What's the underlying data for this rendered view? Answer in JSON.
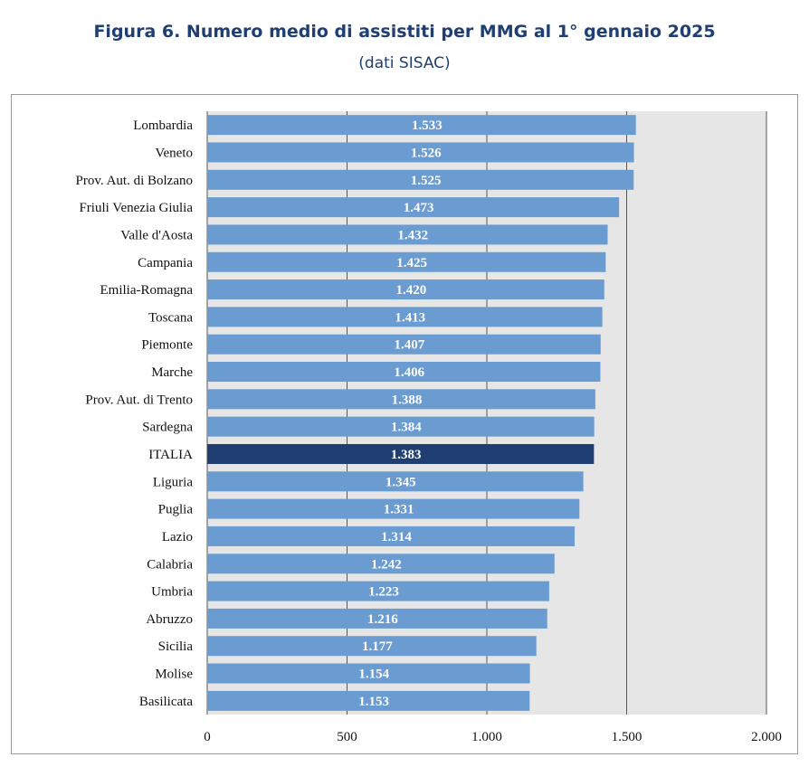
{
  "header": {
    "title": "Figura 6. Numero medio di assistiti per MMG al 1° gennaio 2025",
    "subtitle": "(dati SISAC)"
  },
  "colors": {
    "bar": "#6a9bd1",
    "highlight": "#1f3f73",
    "plot_bg": "#e6e6e6",
    "grid": "#555555",
    "title": "#1f3f73"
  },
  "chart_data": {
    "type": "bar",
    "orientation": "horizontal",
    "title": "Figura 6. Numero medio di assistiti per MMG al 1° gennaio 2025",
    "subtitle": "(dati SISAC)",
    "categories": [
      "Lombardia",
      "Veneto",
      "Prov. Aut. di Bolzano",
      "Friuli Venezia Giulia",
      "Valle d'Aosta",
      "Campania",
      "Emilia-Romagna",
      "Toscana",
      "Piemonte",
      "Marche",
      "Prov. Aut. di Trento",
      "Sardegna",
      "ITALIA",
      "Liguria",
      "Puglia",
      "Lazio",
      "Calabria",
      "Umbria",
      "Abruzzo",
      "Sicilia",
      "Molise",
      "Basilicata"
    ],
    "values": [
      1533,
      1526,
      1525,
      1473,
      1432,
      1425,
      1420,
      1413,
      1407,
      1406,
      1388,
      1384,
      1383,
      1345,
      1331,
      1314,
      1242,
      1223,
      1216,
      1177,
      1154,
      1153
    ],
    "value_labels": [
      "1.533",
      "1.526",
      "1.525",
      "1.473",
      "1.432",
      "1.425",
      "1.420",
      "1.413",
      "1.407",
      "1.406",
      "1.388",
      "1.384",
      "1.383",
      "1.345",
      "1.331",
      "1.314",
      "1.242",
      "1.223",
      "1.216",
      "1.177",
      "1.154",
      "1.153"
    ],
    "highlight_category": "ITALIA",
    "xlim": [
      0,
      2000
    ],
    "xticks": [
      0,
      500,
      1000,
      1500,
      2000
    ],
    "xtick_labels": [
      "0",
      "500",
      "1.000",
      "1.500",
      "2.000"
    ],
    "xlabel": "",
    "ylabel": "",
    "grid": true,
    "legend": "none"
  }
}
